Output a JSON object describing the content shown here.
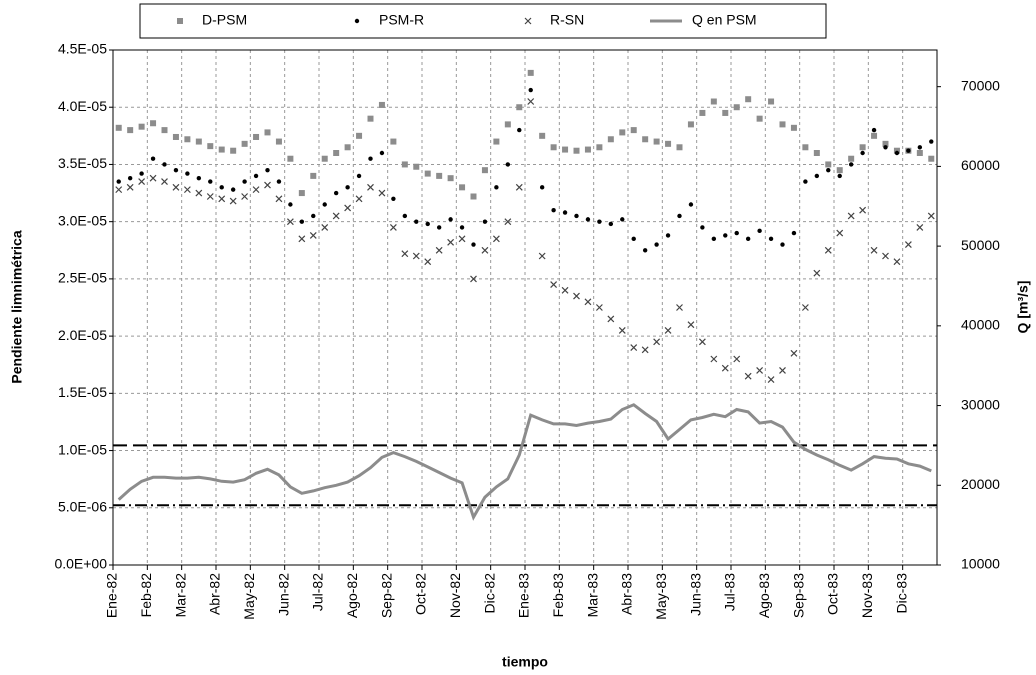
{
  "chart_data": {
    "type": "scatter",
    "y_label": "Pendiente limnimétrica",
    "y2_label": "Q [m³/s]",
    "x_label": "tiempo",
    "categories": [
      "Ene-82",
      null,
      null,
      "Feb-82",
      null,
      null,
      "Mar-82",
      null,
      null,
      "Abr-82",
      null,
      null,
      "May-82",
      null,
      null,
      "Jun-82",
      null,
      null,
      "Jul-82",
      null,
      null,
      "Ago-82",
      null,
      null,
      "Sep-82",
      null,
      null,
      "Oct-82",
      null,
      null,
      "Nov-82",
      null,
      null,
      "Dic-82",
      null,
      null,
      "Ene-83",
      null,
      null,
      "Feb-83",
      null,
      null,
      "Mar-83",
      null,
      null,
      "Abr-83",
      null,
      null,
      "May-83",
      null,
      null,
      "Jun-83",
      null,
      null,
      "Jul-83",
      null,
      null,
      "Ago-83",
      null,
      null,
      "Sep-83",
      null,
      null,
      "Oct-83",
      null,
      null,
      "Nov-83",
      null,
      null,
      "Dic-83",
      null,
      null
    ],
    "ylim": [
      0,
      4.5e-05
    ],
    "yticks": [
      {
        "value": 0,
        "label": "0.0E+00"
      },
      {
        "value": 5e-06,
        "label": "5.0E-06"
      },
      {
        "value": 1e-05,
        "label": "1.0E-05"
      },
      {
        "value": 1.5e-05,
        "label": "1.5E-05"
      },
      {
        "value": 2e-05,
        "label": "2.0E-05"
      },
      {
        "value": 2.5e-05,
        "label": "2.5E-05"
      },
      {
        "value": 3e-05,
        "label": "3.0E-05"
      },
      {
        "value": 3.5e-05,
        "label": "3.5E-05"
      },
      {
        "value": 4e-05,
        "label": "4.0E-05"
      },
      {
        "value": 4.5e-05,
        "label": "4.5E-05"
      }
    ],
    "y2lim": [
      10000,
      74600
    ],
    "y2ticks": [
      10000,
      20000,
      30000,
      40000,
      50000,
      60000,
      70000
    ],
    "grid": true,
    "hlines": [
      {
        "value": 25000,
        "axis": "y2",
        "style": "dashed"
      },
      {
        "value": 17500,
        "axis": "y2",
        "style": "dashdot"
      }
    ],
    "series": [
      {
        "name": "D-PSM",
        "color": "#8c8c8c",
        "marker": "square",
        "values": [
          3.82e-05,
          3.8e-05,
          3.83e-05,
          3.86e-05,
          3.8e-05,
          3.74e-05,
          3.72e-05,
          3.7e-05,
          3.66e-05,
          3.63e-05,
          3.62e-05,
          3.68e-05,
          3.74e-05,
          3.78e-05,
          3.7e-05,
          3.55e-05,
          3.25e-05,
          3.4e-05,
          3.55e-05,
          3.6e-05,
          3.65e-05,
          3.75e-05,
          3.9e-05,
          4.02e-05,
          3.7e-05,
          3.5e-05,
          3.48e-05,
          3.42e-05,
          3.4e-05,
          3.38e-05,
          3.3e-05,
          3.22e-05,
          3.45e-05,
          3.7e-05,
          3.85e-05,
          4e-05,
          4.3e-05,
          3.75e-05,
          3.65e-05,
          3.63e-05,
          3.62e-05,
          3.63e-05,
          3.65e-05,
          3.72e-05,
          3.78e-05,
          3.8e-05,
          3.72e-05,
          3.7e-05,
          3.68e-05,
          3.65e-05,
          3.85e-05,
          3.95e-05,
          4.05e-05,
          3.95e-05,
          4e-05,
          4.07e-05,
          3.9e-05,
          4.05e-05,
          3.85e-05,
          3.82e-05,
          3.65e-05,
          3.6e-05,
          3.5e-05,
          3.45e-05,
          3.55e-05,
          3.65e-05,
          3.75e-05,
          3.68e-05,
          3.62e-05,
          3.62e-05,
          3.6e-05,
          3.55e-05
        ]
      },
      {
        "name": "PSM-R",
        "color": "#000000",
        "marker": "dot",
        "values": [
          3.35e-05,
          3.38e-05,
          3.42e-05,
          3.55e-05,
          3.5e-05,
          3.45e-05,
          3.42e-05,
          3.38e-05,
          3.35e-05,
          3.3e-05,
          3.28e-05,
          3.35e-05,
          3.4e-05,
          3.45e-05,
          3.35e-05,
          3.15e-05,
          3e-05,
          3.05e-05,
          3.15e-05,
          3.25e-05,
          3.3e-05,
          3.4e-05,
          3.55e-05,
          3.6e-05,
          3.2e-05,
          3.05e-05,
          3e-05,
          2.98e-05,
          2.95e-05,
          3.02e-05,
          2.95e-05,
          2.8e-05,
          3e-05,
          3.3e-05,
          3.5e-05,
          3.8e-05,
          4.15e-05,
          3.3e-05,
          3.1e-05,
          3.08e-05,
          3.05e-05,
          3.02e-05,
          3e-05,
          2.98e-05,
          3.02e-05,
          2.85e-05,
          2.75e-05,
          2.8e-05,
          2.88e-05,
          3.05e-05,
          3.15e-05,
          2.95e-05,
          2.85e-05,
          2.88e-05,
          2.9e-05,
          2.85e-05,
          2.92e-05,
          2.85e-05,
          2.8e-05,
          2.9e-05,
          3.35e-05,
          3.4e-05,
          3.45e-05,
          3.4e-05,
          3.5e-05,
          3.6e-05,
          3.8e-05,
          3.65e-05,
          3.6e-05,
          3.62e-05,
          3.65e-05,
          3.7e-05
        ]
      },
      {
        "name": "R-SN",
        "color": "#444444",
        "marker": "cross",
        "values": [
          3.28e-05,
          3.3e-05,
          3.35e-05,
          3.38e-05,
          3.35e-05,
          3.3e-05,
          3.28e-05,
          3.25e-05,
          3.22e-05,
          3.2e-05,
          3.18e-05,
          3.22e-05,
          3.28e-05,
          3.32e-05,
          3.2e-05,
          3e-05,
          2.85e-05,
          2.88e-05,
          2.95e-05,
          3.05e-05,
          3.12e-05,
          3.2e-05,
          3.3e-05,
          3.25e-05,
          2.95e-05,
          2.72e-05,
          2.7e-05,
          2.65e-05,
          2.75e-05,
          2.82e-05,
          2.85e-05,
          2.5e-05,
          2.75e-05,
          2.85e-05,
          3e-05,
          3.3e-05,
          4.05e-05,
          2.7e-05,
          2.45e-05,
          2.4e-05,
          2.35e-05,
          2.3e-05,
          2.25e-05,
          2.15e-05,
          2.05e-05,
          1.9e-05,
          1.88e-05,
          1.95e-05,
          2.05e-05,
          2.25e-05,
          2.1e-05,
          1.95e-05,
          1.8e-05,
          1.72e-05,
          1.8e-05,
          1.65e-05,
          1.7e-05,
          1.62e-05,
          1.7e-05,
          1.85e-05,
          2.25e-05,
          2.55e-05,
          2.75e-05,
          2.9e-05,
          3.05e-05,
          3.1e-05,
          2.75e-05,
          2.7e-05,
          2.65e-05,
          2.8e-05,
          2.95e-05,
          3.05e-05
        ]
      },
      {
        "name": "Q en PSM",
        "color": "#8c8c8c",
        "marker": "line",
        "axis": "y2",
        "values": [
          18200,
          19500,
          20500,
          21000,
          21000,
          20900,
          20900,
          21000,
          20800,
          20500,
          20400,
          20700,
          21500,
          22000,
          21300,
          19800,
          19000,
          19300,
          19700,
          20000,
          20400,
          21200,
          22200,
          23500,
          24100,
          23600,
          23000,
          22300,
          21600,
          20900,
          20300,
          16000,
          18500,
          19800,
          20800,
          23800,
          28800,
          28200,
          27700,
          27700,
          27500,
          27800,
          28000,
          28300,
          29500,
          30100,
          29000,
          28000,
          25800,
          27000,
          28200,
          28500,
          28900,
          28600,
          29500,
          29200,
          27800,
          28000,
          27300,
          25400,
          24500,
          23800,
          23200,
          22500,
          21900,
          22700,
          23600,
          23400,
          23300,
          22700,
          22400,
          21800
        ]
      }
    ]
  }
}
